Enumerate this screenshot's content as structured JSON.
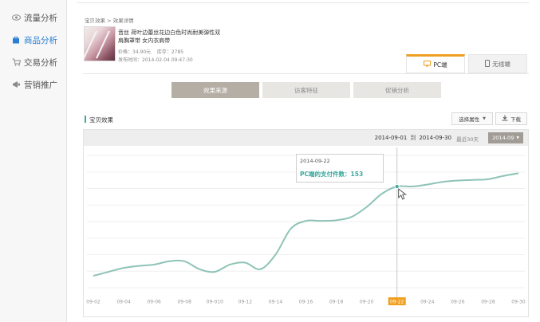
{
  "sidebar": {
    "items": [
      {
        "label": "流量分析",
        "icon": "eye-icon"
      },
      {
        "label": "商品分析",
        "icon": "bag-icon"
      },
      {
        "label": "交易分析",
        "icon": "cart-icon"
      },
      {
        "label": "营销推广",
        "icon": "megaphone-icon"
      }
    ]
  },
  "breadcrumb": "宝贝效果 > 效果详情",
  "product": {
    "title": "音丝 荷叶边蕾丝花边白色时尚耐美弹性双肩胸罩带 女内衣肩带",
    "price": "价格：34.90元",
    "stock": "库存：2785",
    "listed": "发布时间：2014-02-04 09:47:30"
  },
  "device_tabs": [
    {
      "label": "PC端",
      "icon": "monitor-icon"
    },
    {
      "label": "无线端",
      "icon": "phone-icon"
    }
  ],
  "sub_tabs": [
    "效果来源",
    "访客特征",
    "促销分析"
  ],
  "section": {
    "title": "宝贝效果",
    "select_label": "选择属性",
    "download_label": "下载"
  },
  "date_bar": {
    "start": "2014-09-01",
    "to": "到",
    "end": "2014-09-30",
    "recent": "最近30天",
    "month": "2014-09"
  },
  "tooltip": {
    "date": "2014-09-22",
    "text": "PC端的支付件数：153"
  },
  "colors": {
    "accent": "#3aa89c",
    "line": "#8ec3b7",
    "highlight": "#f0a020",
    "active_nav": "#2a7fd4"
  },
  "chart_data": {
    "type": "line",
    "title": "",
    "xlabel": "",
    "ylabel": "",
    "x_tick_labels": [
      "09-02",
      "09-04",
      "09-06",
      "09-08",
      "09-010",
      "09-12",
      "09-14",
      "09-16",
      "09-18",
      "09-20",
      "09-22",
      "09-24",
      "09-26",
      "09-28",
      "09-30"
    ],
    "highlighted_tick": "09-22",
    "grid": true,
    "ylim": [
      0,
      200
    ],
    "series": [
      {
        "values": [
          {
            "x": "09-02",
            "y": 18
          },
          {
            "x": "09-03",
            "y": 24
          },
          {
            "x": "09-04",
            "y": 30
          },
          {
            "x": "09-05",
            "y": 33
          },
          {
            "x": "09-06",
            "y": 35
          },
          {
            "x": "09-07",
            "y": 40
          },
          {
            "x": "09-08",
            "y": 40
          },
          {
            "x": "09-09",
            "y": 28
          },
          {
            "x": "09-10",
            "y": 24
          },
          {
            "x": "09-11",
            "y": 35
          },
          {
            "x": "09-12",
            "y": 38
          },
          {
            "x": "09-13",
            "y": 28
          },
          {
            "x": "09-14",
            "y": 50
          },
          {
            "x": "09-15",
            "y": 89
          },
          {
            "x": "09-16",
            "y": 101
          },
          {
            "x": "09-17",
            "y": 101
          },
          {
            "x": "09-18",
            "y": 102
          },
          {
            "x": "09-19",
            "y": 107
          },
          {
            "x": "09-20",
            "y": 122
          },
          {
            "x": "09-21",
            "y": 142
          },
          {
            "x": "09-22",
            "y": 153
          },
          {
            "x": "09-23",
            "y": 153
          },
          {
            "x": "09-24",
            "y": 156
          },
          {
            "x": "09-25",
            "y": 160
          },
          {
            "x": "09-26",
            "y": 162
          },
          {
            "x": "09-27",
            "y": 163
          },
          {
            "x": "09-28",
            "y": 164
          },
          {
            "x": "09-29",
            "y": 169
          },
          {
            "x": "09-30",
            "y": 173
          }
        ]
      }
    ]
  }
}
